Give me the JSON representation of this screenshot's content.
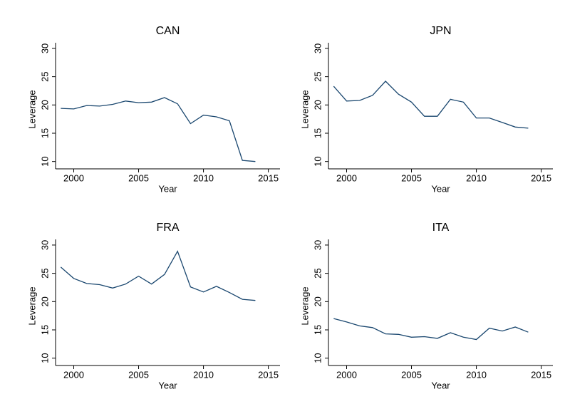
{
  "chart_data": [
    {
      "type": "line",
      "title": "CAN",
      "xlabel": "Year",
      "ylabel": "Leverage",
      "color": "#1a476f",
      "x": [
        1999,
        2000,
        2001,
        2002,
        2003,
        2004,
        2005,
        2006,
        2007,
        2008,
        2009,
        2010,
        2011,
        2012,
        2013,
        2014
      ],
      "values": [
        19.4,
        19.3,
        19.9,
        19.8,
        20.1,
        20.7,
        20.4,
        20.5,
        21.3,
        20.2,
        16.7,
        18.2,
        17.9,
        17.2,
        10.2,
        10.0
      ],
      "xlim": [
        1998.6,
        2015.9
      ],
      "xticks": [
        2000,
        2005,
        2010,
        2015
      ],
      "ylim": [
        8.7,
        31
      ],
      "yticks": [
        10,
        15,
        20,
        25,
        30
      ]
    },
    {
      "type": "line",
      "title": "JPN",
      "xlabel": "Year",
      "ylabel": "Leverage",
      "color": "#1a476f",
      "x": [
        1999,
        2000,
        2001,
        2002,
        2003,
        2004,
        2005,
        2006,
        2007,
        2008,
        2009,
        2010,
        2011,
        2012,
        2013,
        2014
      ],
      "values": [
        23.3,
        20.7,
        20.8,
        21.7,
        24.2,
        21.9,
        20.5,
        18.0,
        18.0,
        21.0,
        20.5,
        17.7,
        17.7,
        16.9,
        16.1,
        15.9
      ],
      "xlim": [
        1998.6,
        2015.9
      ],
      "xticks": [
        2000,
        2005,
        2010,
        2015
      ],
      "ylim": [
        8.7,
        31
      ],
      "yticks": [
        10,
        15,
        20,
        25,
        30
      ]
    },
    {
      "type": "line",
      "title": "FRA",
      "xlabel": "Year",
      "ylabel": "Leverage",
      "color": "#1a476f",
      "x": [
        1999,
        2000,
        2001,
        2002,
        2003,
        2004,
        2005,
        2006,
        2007,
        2008,
        2009,
        2010,
        2011,
        2012,
        2013,
        2014
      ],
      "values": [
        26.1,
        24.1,
        23.2,
        23.0,
        22.4,
        23.1,
        24.5,
        23.1,
        24.8,
        28.9,
        22.6,
        21.7,
        22.7,
        21.6,
        20.4,
        20.2
      ],
      "xlim": [
        1998.6,
        2015.9
      ],
      "xticks": [
        2000,
        2005,
        2010,
        2015
      ],
      "ylim": [
        8.7,
        31
      ],
      "yticks": [
        10,
        15,
        20,
        25,
        30
      ]
    },
    {
      "type": "line",
      "title": "ITA",
      "xlabel": "Year",
      "ylabel": "Leverage",
      "color": "#1a476f",
      "x": [
        1999,
        2000,
        2001,
        2002,
        2003,
        2004,
        2005,
        2006,
        2007,
        2008,
        2009,
        2010,
        2011,
        2012,
        2013,
        2014
      ],
      "values": [
        17.0,
        16.4,
        15.7,
        15.4,
        14.3,
        14.2,
        13.7,
        13.8,
        13.5,
        14.5,
        13.7,
        13.3,
        15.3,
        14.8,
        15.5,
        14.6
      ],
      "xlim": [
        1998.6,
        2015.9
      ],
      "xticks": [
        2000,
        2005,
        2010,
        2015
      ],
      "ylim": [
        8.7,
        31
      ],
      "yticks": [
        10,
        15,
        20,
        25,
        30
      ]
    }
  ]
}
